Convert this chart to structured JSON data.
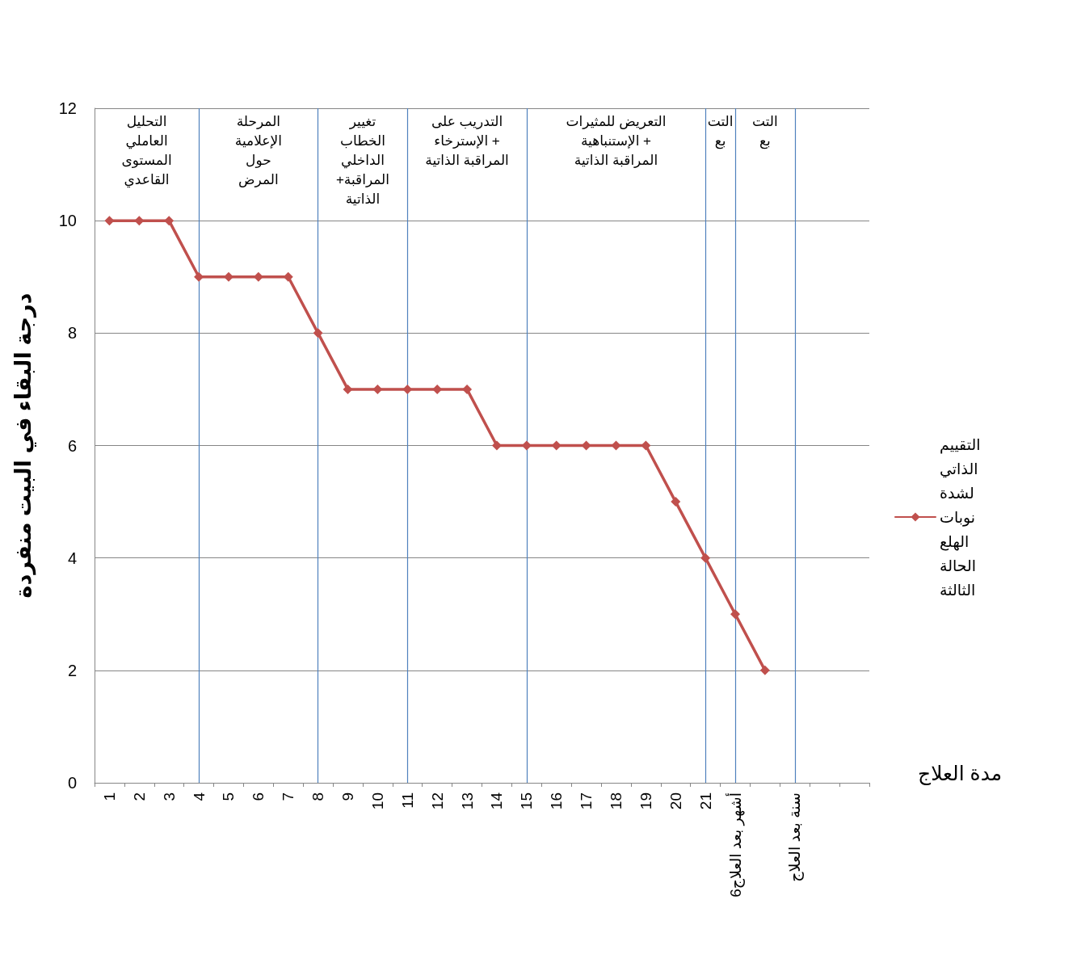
{
  "chart_data": {
    "type": "line",
    "xlabel": "مدة العلاج",
    "ylabel": "درجة البقاء في البيت منفردة",
    "categories": [
      "1",
      "2",
      "3",
      "4",
      "5",
      "6",
      "7",
      "8",
      "9",
      "10",
      "11",
      "12",
      "13",
      "14",
      "15",
      "16",
      "17",
      "18",
      "19",
      "20",
      "21",
      "6أشهر بعد العلاج",
      null,
      "سنة بعد العلاج",
      null,
      null
    ],
    "series": [
      {
        "name": "التقييم الذاتي لشدة نوبات الهلع الحالة الثالثة",
        "color": "#c0504d",
        "values": [
          10,
          10,
          10,
          9,
          9,
          9,
          9,
          8,
          7,
          7,
          7,
          7,
          7,
          6,
          6,
          6,
          6,
          6,
          6,
          5,
          4,
          3,
          2,
          null,
          null,
          null
        ]
      }
    ],
    "ylim": [
      0,
      12
    ],
    "yticks": [
      0,
      2,
      4,
      6,
      8,
      10,
      12
    ],
    "grid": "y",
    "legend": "right",
    "marker": "diamond",
    "line_style": "solid",
    "ref_lines": [
      {
        "axis": "x",
        "value": "4",
        "color": "#4f81bd"
      },
      {
        "axis": "x",
        "value": "8",
        "color": "#4f81bd"
      },
      {
        "axis": "x",
        "value": "11",
        "color": "#4f81bd"
      },
      {
        "axis": "x",
        "value": "15",
        "color": "#4f81bd"
      },
      {
        "axis": "x",
        "value": "21",
        "color": "#4f81bd"
      },
      {
        "axis": "x",
        "value": "6أشهر بعد العلاج",
        "color": "#4f81bd"
      },
      {
        "axis": "x",
        "value": "سنة بعد العلاج",
        "color": "#4f81bd"
      }
    ],
    "annotations": [
      "التحليل\nالعاملي\nالمستوى\nالقاعدي",
      "المرحلة\nالإعلامية\nحول\nالمرض",
      "تغيير\nالخطاب\nالداخلي\n+المراقبة\nالذاتية",
      "التدريب على\nالإسترخاء +\nالمراقبة الذاتية",
      "التعريض للمثيرات\nالإستنباهية +\nالمراقبة الذاتية",
      "التت\nبع",
      "التت\nبع"
    ]
  }
}
